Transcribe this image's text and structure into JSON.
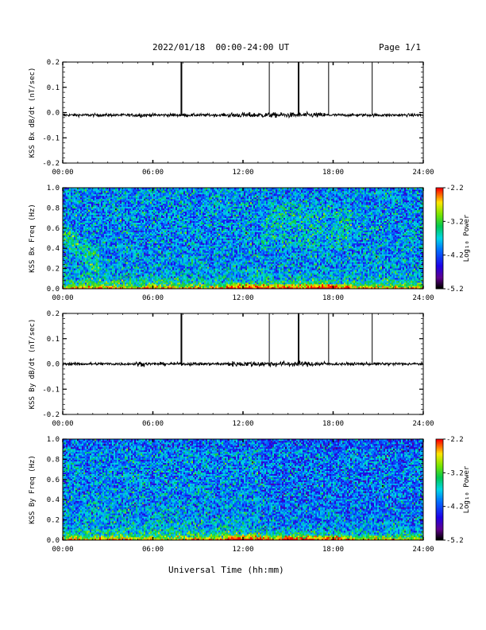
{
  "header": {
    "title": "2022/01/18  00:00-24:00 UT",
    "page": "Page 1/1"
  },
  "xlabel": "Universal Time (hh:mm)",
  "chart_data": [
    {
      "type": "line",
      "ylabel": "KSS Bx dB/dt (nT/sec)",
      "xlim": [
        0,
        24
      ],
      "ylim": [
        -0.2,
        0.2
      ],
      "xticks": [
        "00:00",
        "06:00",
        "12:00",
        "18:00",
        "24:00"
      ],
      "yticks": [
        "0.2",
        "0.1",
        "0.0",
        "-0.1",
        "-0.2"
      ],
      "baseline": -0.01,
      "spikes": [
        {
          "t": 7.9,
          "v": 0.2,
          "w": 2
        },
        {
          "t": 13.75,
          "v": 0.2,
          "w": 1
        },
        {
          "t": 15.7,
          "v": 0.2,
          "w": 2
        },
        {
          "t": 17.7,
          "v": 0.2,
          "w": 1
        },
        {
          "t": 20.6,
          "v": 0.2,
          "w": 1
        }
      ]
    },
    {
      "type": "heatmap",
      "ylabel": "KSS Bx Freq (Hz)",
      "xlim": [
        0,
        24
      ],
      "ylim": [
        0.0,
        1.0
      ],
      "xticks": [
        "00:00",
        "06:00",
        "12:00",
        "18:00",
        "24:00"
      ],
      "yticks": [
        "1.0",
        "0.8",
        "0.6",
        "0.4",
        "0.2",
        "0.0"
      ],
      "colorbar": {
        "label": "Log₁₀ Power",
        "ticks": [
          "-2.2",
          "-3.2",
          "-4.2",
          "-5.2"
        ],
        "range": [
          -5.2,
          -2.2
        ]
      }
    },
    {
      "type": "line",
      "ylabel": "KSS By dB/dt (nT/sec)",
      "xlim": [
        0,
        24
      ],
      "ylim": [
        -0.2,
        0.2
      ],
      "xticks": [
        "00:00",
        "06:00",
        "12:00",
        "18:00",
        "24:00"
      ],
      "yticks": [
        "0.2",
        "0.1",
        "0.0",
        "-0.1",
        "-0.2"
      ],
      "baseline": 0.0,
      "spikes": [
        {
          "t": 7.9,
          "v": 0.2,
          "w": 2
        },
        {
          "t": 13.75,
          "v": 0.2,
          "w": 1
        },
        {
          "t": 15.7,
          "v": 0.2,
          "w": 2
        },
        {
          "t": 17.7,
          "v": 0.2,
          "w": 1
        },
        {
          "t": 20.6,
          "v": 0.2,
          "w": 1
        }
      ]
    },
    {
      "type": "heatmap",
      "ylabel": "KSS By Freq (Hz)",
      "xlim": [
        0,
        24
      ],
      "ylim": [
        0.0,
        1.0
      ],
      "xticks": [
        "00:00",
        "06:00",
        "12:00",
        "18:00",
        "24:00"
      ],
      "yticks": [
        "1.0",
        "0.8",
        "0.6",
        "0.4",
        "0.2",
        "0.0"
      ],
      "colorbar": {
        "label": "Log₁₀ Power",
        "ticks": [
          "-2.2",
          "-3.2",
          "-4.2",
          "-5.2"
        ],
        "range": [
          -5.2,
          -2.2
        ]
      }
    }
  ]
}
